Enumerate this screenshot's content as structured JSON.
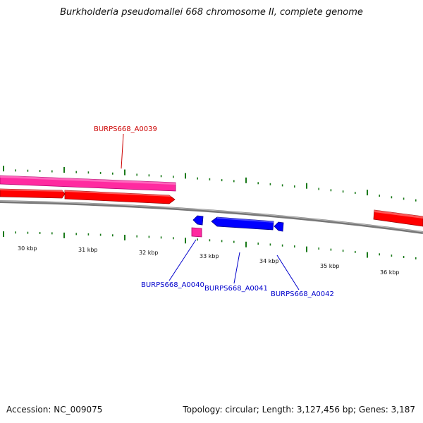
{
  "title": "Burkholderia pseudomallei 668 chromosome II, complete genome",
  "footer": {
    "accession": "Accession: NC_009075",
    "summary": "Topology: circular; Length: 3,127,456 bp; Genes: 3,187"
  },
  "scale": {
    "labels": [
      "30 kbp",
      "31 kbp",
      "32 kbp",
      "33 kbp",
      "34 kbp",
      "35 kbp",
      "36 kbp"
    ]
  },
  "genes": {
    "top": [
      {
        "label": "BURPS668_A0039"
      }
    ],
    "bottom": [
      {
        "label": "BURPS668_A0040"
      },
      {
        "label": "BURPS668_A0041"
      },
      {
        "label": "BURPS668_A0042"
      }
    ]
  },
  "colors": {
    "forward_cds": "#ff0000",
    "pink_feature": "#ff2aa0",
    "reverse_cds": "#0000ff",
    "backbone": "#888888",
    "tick": "#1a7a1a",
    "top_label": "#cc0000",
    "bottom_label": "#0000cc"
  }
}
